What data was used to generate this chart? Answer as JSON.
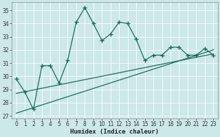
{
  "title": "",
  "xlabel": "Humidex (Indice chaleur)",
  "bg_color": "#cce8e8",
  "grid_color": "#b0d0d0",
  "line_color": "#1a6b5a",
  "xlim": [
    -0.5,
    23.5
  ],
  "ylim": [
    26.8,
    35.6
  ],
  "yticks": [
    27,
    28,
    29,
    30,
    31,
    32,
    33,
    34,
    35
  ],
  "xticks": [
    0,
    1,
    2,
    3,
    4,
    5,
    6,
    7,
    8,
    9,
    10,
    11,
    12,
    13,
    14,
    15,
    16,
    17,
    18,
    19,
    20,
    21,
    22,
    23
  ],
  "line1_x": [
    0,
    1,
    2,
    3,
    4,
    5,
    6,
    7,
    8,
    9,
    10,
    11,
    12,
    13,
    14,
    15,
    16,
    17,
    18,
    19,
    20,
    21,
    22,
    23
  ],
  "line1_y": [
    29.8,
    28.8,
    27.5,
    30.8,
    30.8,
    29.5,
    31.2,
    34.1,
    35.2,
    34.0,
    32.7,
    33.2,
    34.1,
    34.0,
    32.8,
    31.2,
    31.6,
    31.6,
    32.2,
    32.2,
    31.6,
    31.6,
    32.1,
    31.6
  ],
  "line2_x": [
    0,
    23
  ],
  "line2_y": [
    27.2,
    32.0
  ],
  "line3_x": [
    0,
    23
  ],
  "line3_y": [
    28.7,
    31.7
  ],
  "spine_color": "#888888",
  "tick_fontsize": 5.5,
  "xlabel_fontsize": 6.5
}
